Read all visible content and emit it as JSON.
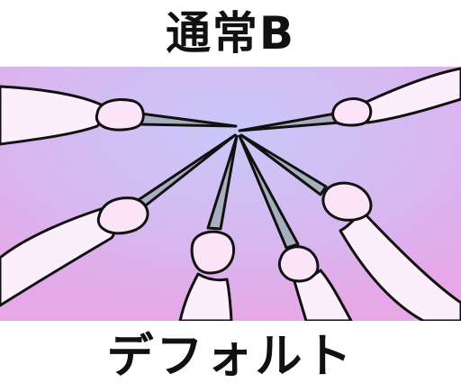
{
  "title": "通常B",
  "caption": "デフォルト",
  "colors": {
    "background_top": "#ffffff",
    "gradient_center": "#c9c8f8",
    "gradient_edge": "#e6a8e6",
    "pencil": "#a7aebd",
    "hand": "#fbe3f8",
    "arm": "#fdeefb",
    "outline": "#111111"
  },
  "illustration": {
    "hand_count": 6,
    "icon": "pencil-hands-converging-illustration"
  }
}
